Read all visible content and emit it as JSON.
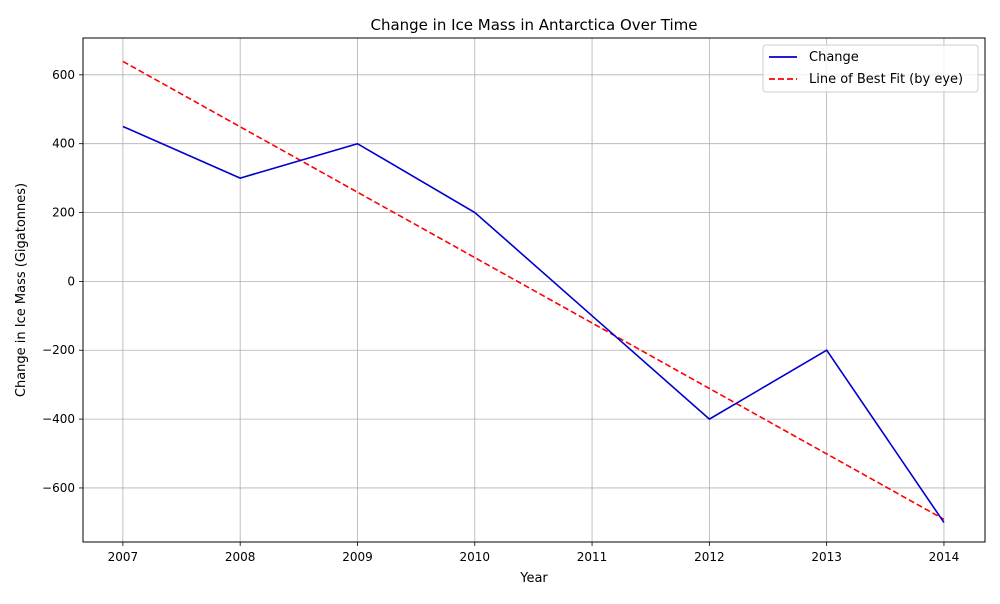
{
  "chart_data": {
    "type": "line",
    "title": "Change in Ice Mass in Antarctica Over Time",
    "xlabel": "Year",
    "ylabel": "Change in Ice Mass (Gigatonnes)",
    "x": [
      2007,
      2008,
      2009,
      2010,
      2011,
      2012,
      2013,
      2014
    ],
    "xlim": [
      2006.66,
      2014.35
    ],
    "ylim": [
      -757,
      707
    ],
    "yticks": [
      600,
      400,
      200,
      0,
      -200,
      -400,
      -600
    ],
    "ytick_labels": [
      "600",
      "400",
      "200",
      "0",
      "−200",
      "−400",
      "−600"
    ],
    "xtick_labels": [
      "2007",
      "2008",
      "2009",
      "2010",
      "2011",
      "2012",
      "2013",
      "2014"
    ],
    "grid": true,
    "legend_position": "top-right",
    "series": [
      {
        "name": "Change",
        "values": [
          450,
          300,
          400,
          200,
          -100,
          -400,
          -200,
          -700
        ],
        "color": "#0000cc",
        "style": "solid"
      },
      {
        "name": "Line of Best Fit (by eye)",
        "values": [
          639,
          449,
          259,
          69,
          -121,
          -311,
          -501,
          -691
        ],
        "color": "#ff0000",
        "style": "dashed"
      }
    ]
  }
}
